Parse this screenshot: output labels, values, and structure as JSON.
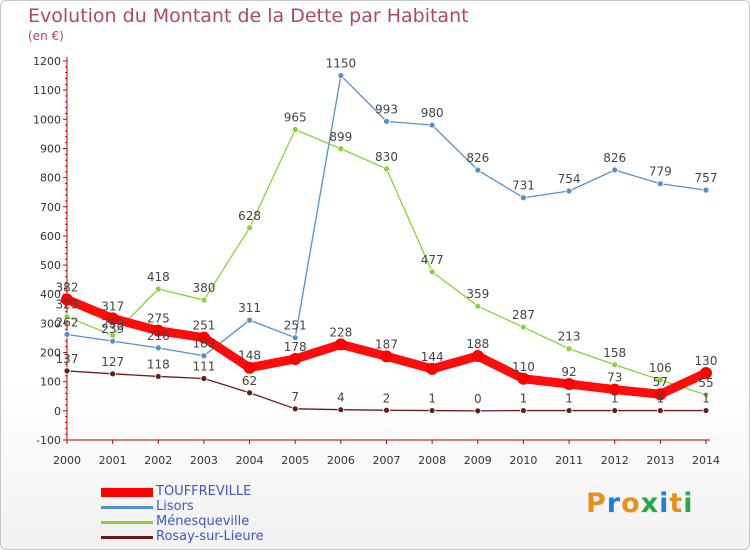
{
  "chart_data": {
    "type": "line",
    "title": "Evolution du Montant de la Dette par Habitant",
    "subtitle": "(en €)",
    "x": [
      "2000",
      "2001",
      "2002",
      "2003",
      "2004",
      "2005",
      "2006",
      "2007",
      "2008",
      "2009",
      "2010",
      "2011",
      "2012",
      "2013",
      "2014"
    ],
    "ylim": [
      -100,
      1200
    ],
    "yticks": [
      -100,
      0,
      100,
      200,
      300,
      400,
      500,
      600,
      700,
      800,
      900,
      1000,
      1100,
      1200
    ],
    "grid": false,
    "legend_placement": "bottom-left",
    "series": [
      {
        "name": "TOUFFREVILLE",
        "color": "#ff0000",
        "values": [
          382,
          317,
          275,
          251,
          148,
          178,
          228,
          187,
          144,
          188,
          110,
          92,
          73,
          57,
          130
        ]
      },
      {
        "name": "Lisors",
        "color": "#5591c8",
        "values": [
          262,
          239,
          216,
          189,
          311,
          251,
          1150,
          993,
          980,
          826,
          731,
          754,
          826,
          779,
          757
        ]
      },
      {
        "name": "Ménesqueville",
        "color": "#8ad23a",
        "values": [
          323,
          259,
          418,
          380,
          628,
          965,
          899,
          830,
          477,
          359,
          287,
          213,
          158,
          106,
          55
        ]
      },
      {
        "name": "Rosay-sur-Lieure",
        "color": "#6b1a1a",
        "values": [
          137,
          127,
          118,
          111,
          62,
          7,
          4,
          2,
          1,
          0,
          1,
          1,
          1,
          1,
          1
        ]
      }
    ],
    "point_labels": [
      [
        "382",
        "317",
        "275",
        "251",
        "148",
        "178",
        "228",
        "187",
        "144",
        "188",
        "110",
        "92",
        "73",
        "57",
        "130"
      ],
      [
        "262",
        "239",
        "216",
        "189",
        "311",
        "251",
        "1150",
        "993",
        "980",
        "826",
        "731",
        "754",
        "826",
        "779",
        "757"
      ],
      [
        "323",
        "259",
        "418",
        "380",
        "628",
        "965",
        "899",
        "830",
        "477",
        "359",
        "287",
        "213",
        "158",
        "106",
        "55"
      ],
      [
        "137",
        "127",
        "118",
        "111",
        "62",
        "7",
        "4",
        "2",
        "1",
        "0",
        "1",
        "1",
        "1",
        "1",
        "1"
      ]
    ]
  },
  "logo": {
    "text": "Proxiti",
    "colors": [
      "#e8901c",
      "#1f80d3",
      "#e8901c",
      "#27a84a",
      "#1f80d3",
      "#e8901c",
      "#27a84a"
    ]
  }
}
